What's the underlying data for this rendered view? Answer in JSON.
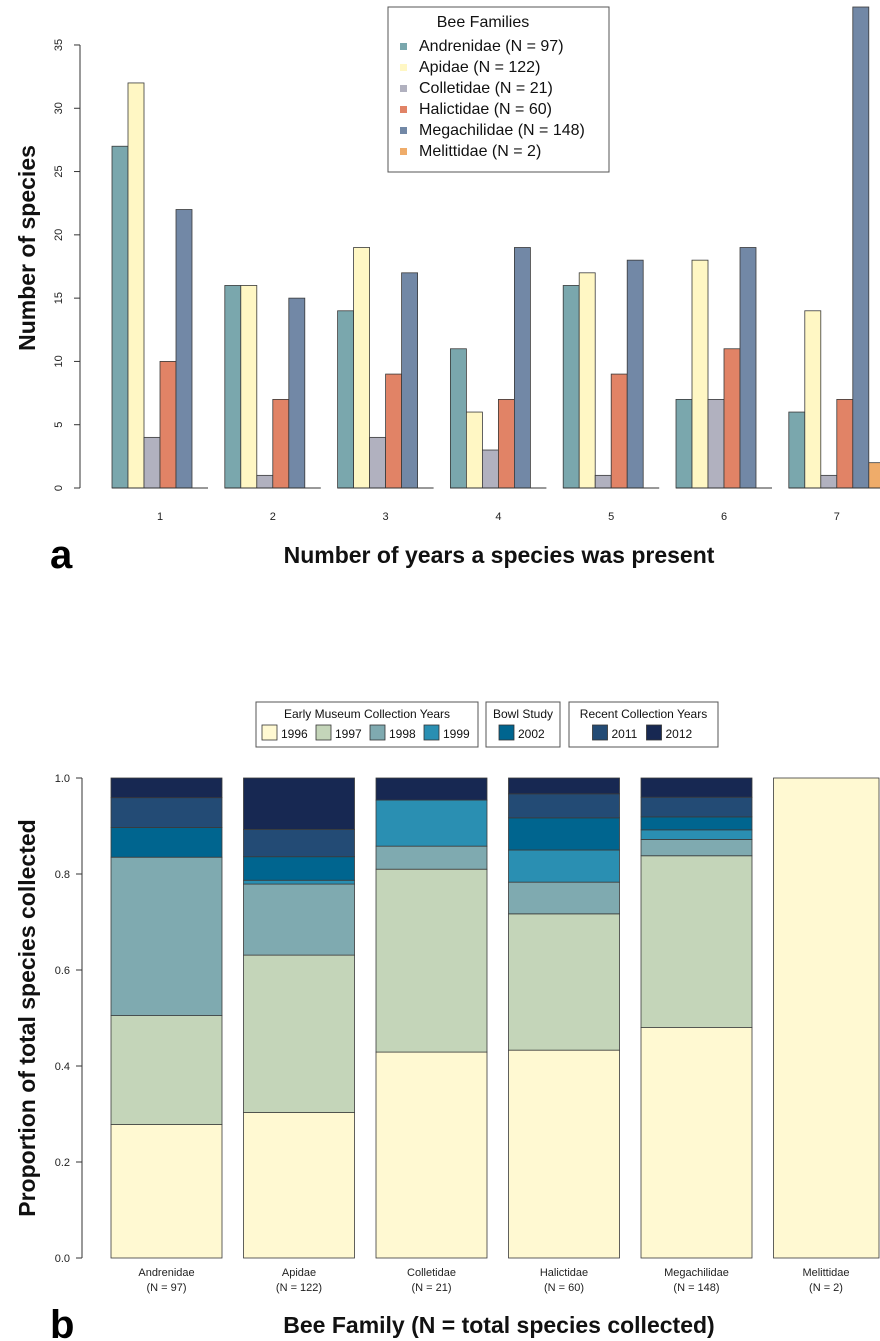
{
  "panel_a": {
    "letter": "a",
    "legend_title": "Bee Families",
    "chart_data": {
      "type": "bar",
      "categories": [
        "1",
        "2",
        "3",
        "4",
        "5",
        "6",
        "7"
      ],
      "xlabel": "Number of years a species was present",
      "ylabel": "Number of species",
      "ylim": [
        0,
        38
      ],
      "yticks": [
        0,
        5,
        10,
        15,
        20,
        25,
        30,
        35
      ],
      "legend_placement": "top-center",
      "grid": false,
      "series": [
        {
          "name": "Andrenidae (N = 97)",
          "color": "#7aa7ad",
          "values": [
            27,
            16,
            14,
            11,
            16,
            7,
            6
          ]
        },
        {
          "name": "Apidae (N = 122)",
          "color": "#fff7c4",
          "values": [
            32,
            16,
            19,
            6,
            17,
            18,
            14
          ]
        },
        {
          "name": "Colletidae (N = 21)",
          "color": "#b1b1bf",
          "values": [
            4,
            1,
            4,
            3,
            1,
            7,
            1
          ]
        },
        {
          "name": "Halictidae (N = 60)",
          "color": "#e18366",
          "values": [
            10,
            7,
            9,
            7,
            9,
            11,
            7
          ]
        },
        {
          "name": "Megachilidae (N = 148)",
          "color": "#7288a6",
          "values": [
            22,
            15,
            17,
            19,
            18,
            19,
            38
          ]
        },
        {
          "name": "Melittidae (N = 2)",
          "color": "#efac6a",
          "values": [
            0,
            0,
            0,
            0,
            0,
            0,
            2
          ]
        }
      ]
    }
  },
  "panel_b": {
    "letter": "b",
    "legend_groups": [
      {
        "title": "Early Museum Collection Years",
        "items": [
          "1996",
          "1997",
          "1998",
          "1999"
        ]
      },
      {
        "title": "Bowl Study",
        "items": [
          "2002"
        ]
      },
      {
        "title": "Recent Collection Years",
        "items": [
          "2011",
          "2012"
        ]
      }
    ],
    "chart_data": {
      "type": "bar",
      "stacked": true,
      "categories": [
        "Andrenidae",
        "Apidae",
        "Colletidae",
        "Halictidae",
        "Megachilidae",
        "Melittidae"
      ],
      "category_counts": [
        "(N = 97)",
        "(N = 122)",
        "(N = 21)",
        "(N = 60)",
        "(N = 148)",
        "(N = 2)"
      ],
      "xlabel": "Bee Family (N = total species collected)",
      "ylabel": "Proportion of total species collected",
      "ylim": [
        0,
        1
      ],
      "yticks": [
        "0.0",
        "0.2",
        "0.4",
        "0.6",
        "0.8",
        "1.0"
      ],
      "legend_placement": "top-center",
      "grid": false,
      "series": [
        {
          "name": "1996",
          "color": "#fff9d2",
          "values": [
            0.278,
            0.303,
            0.429,
            0.433,
            0.48,
            1.0
          ]
        },
        {
          "name": "1997",
          "color": "#c4d5b9",
          "values": [
            0.227,
            0.328,
            0.381,
            0.284,
            0.358,
            0
          ]
        },
        {
          "name": "1998",
          "color": "#7faab0",
          "values": [
            0.33,
            0.148,
            0.048,
            0.066,
            0.034,
            0
          ]
        },
        {
          "name": "1999",
          "color": "#2a8fb2",
          "values": [
            0,
            0.008,
            0.096,
            0.067,
            0.02,
            0
          ]
        },
        {
          "name": "2002",
          "color": "#00658f",
          "values": [
            0.062,
            0.049,
            0,
            0.067,
            0.027,
            0
          ]
        },
        {
          "name": "2011",
          "color": "#234b75",
          "values": [
            0.062,
            0.057,
            0,
            0.05,
            0.041,
            0
          ]
        },
        {
          "name": "2012",
          "color": "#172852",
          "values": [
            0.041,
            0.107,
            0.046,
            0.033,
            0.04,
            0
          ]
        }
      ]
    }
  }
}
